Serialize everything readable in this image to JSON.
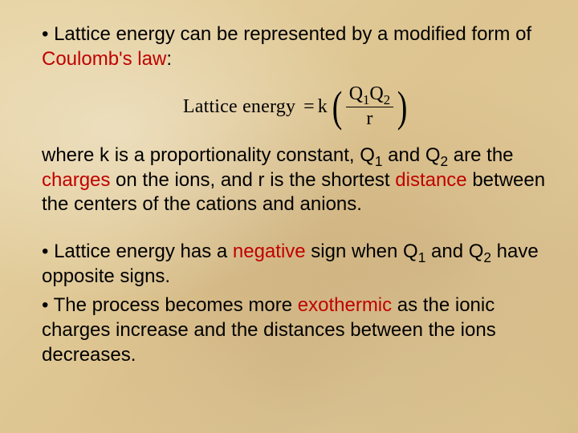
{
  "colors": {
    "highlight": "#c00000",
    "text": "#000000",
    "background_gradient": [
      "#e7d3a2",
      "#ddc490",
      "#d8bf8a"
    ]
  },
  "typography": {
    "body_font": "Arial",
    "body_size_pt": 18,
    "equation_font": "Times New Roman",
    "equation_size_pt": 18
  },
  "bullets": {
    "b1": {
      "prefix": "• ",
      "t1": "Lattice energy can be represented by a modified form of ",
      "hl1": "Coulomb's law",
      "t2": ":"
    },
    "b2": {
      "t1": "where k is a proportionality constant, Q",
      "sub1": "1",
      "t2": " and Q",
      "sub2": "2",
      "t3": " are the ",
      "hl1": "charges",
      "t4": " on the ions, and r is the shortest ",
      "hl2": "distance",
      "t5": " between the centers of the cations and anions."
    },
    "b3": {
      "prefix": "• ",
      "t1": "Lattice energy has a ",
      "hl1": "negative",
      "t2": " sign when Q",
      "sub1": "1",
      "t3": " and Q",
      "sub2": "2",
      "t4": " have opposite signs."
    },
    "b4": {
      "prefix": "• ",
      "t1": "The process becomes more ",
      "hl1": "exothermic",
      "t2": " as the ionic charges increase and the distances between the ions decreases."
    }
  },
  "equation": {
    "lhs": "Lattice energy",
    "equals": "=",
    "k": "k",
    "lparen": "(",
    "numerator": {
      "q1": "Q",
      "s1": "1",
      "q2": "Q",
      "s2": "2"
    },
    "denominator": "r",
    "rparen": ")"
  }
}
